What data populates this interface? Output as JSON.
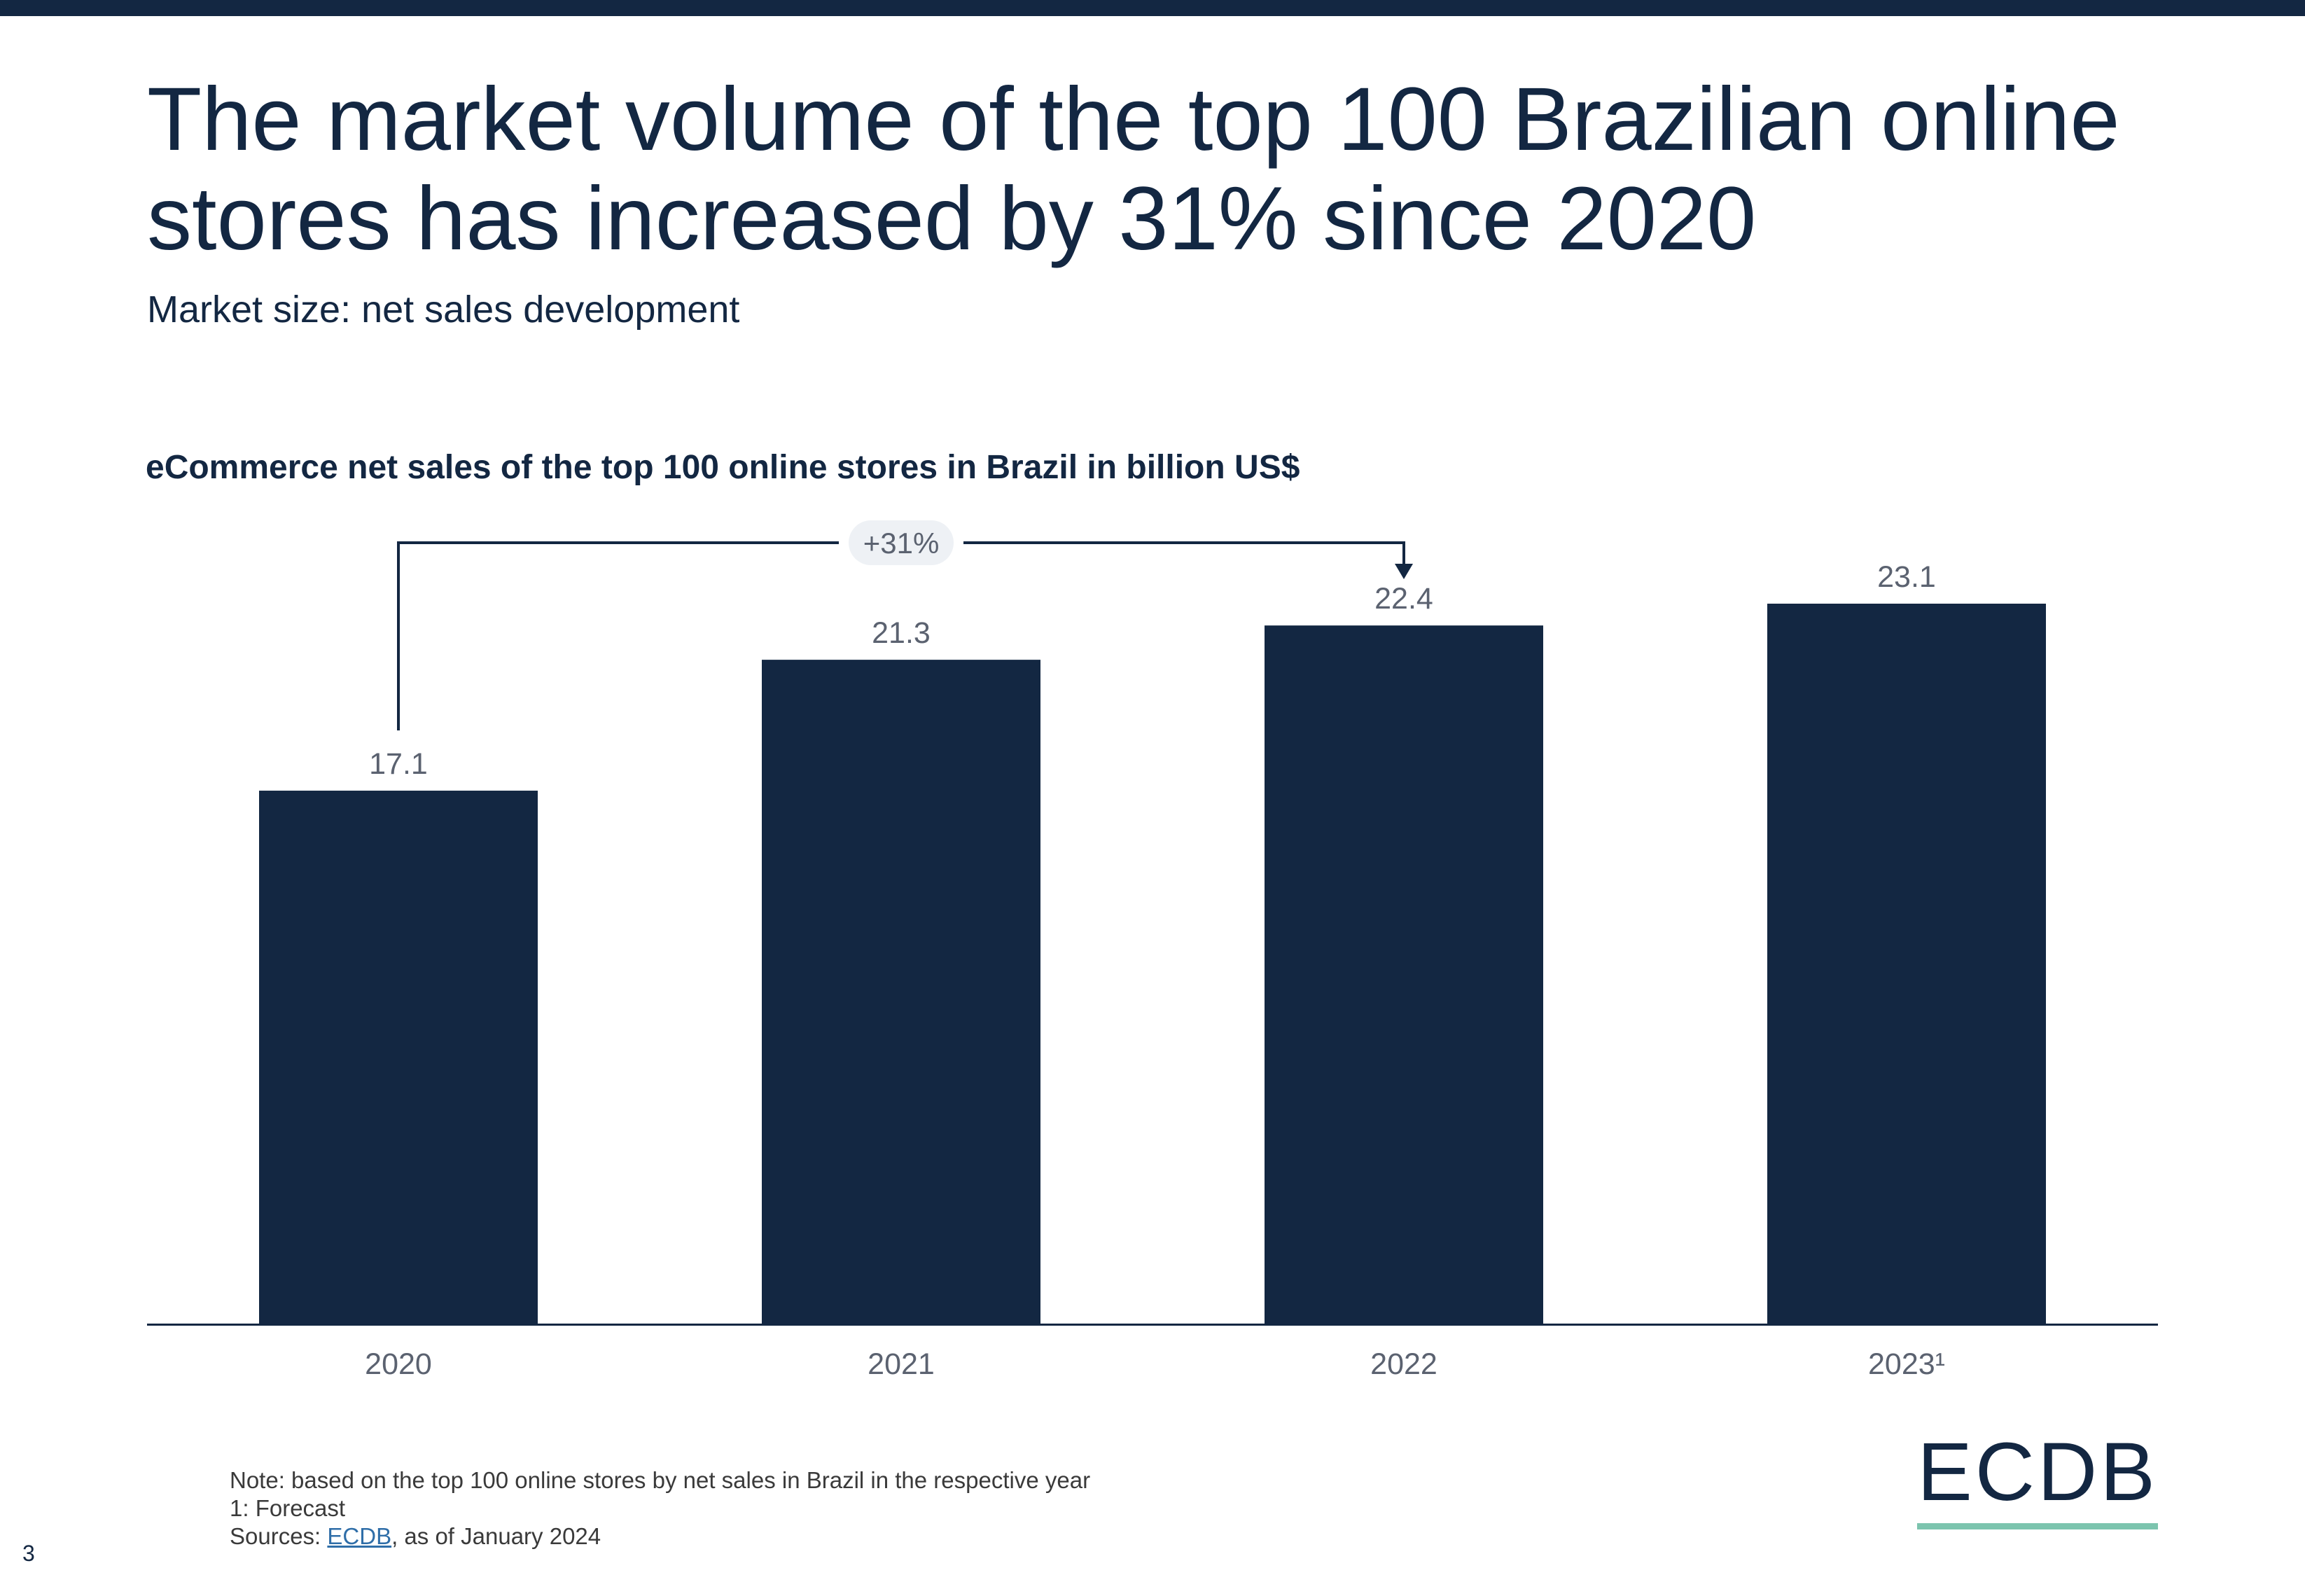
{
  "header": {
    "title": "The market volume of the top 100 Brazilian online stores has increased by 31% since 2020",
    "subtitle": "Market size: net sales development"
  },
  "chart_data": {
    "type": "bar",
    "title": "eCommerce net sales of the top 100 online stores in Brazil in billion US$",
    "categories": [
      "2020",
      "2021",
      "2022",
      "2023¹"
    ],
    "values": [
      17.1,
      21.3,
      22.4,
      23.1
    ],
    "value_labels": [
      "17.1",
      "21.3",
      "22.4",
      "23.1"
    ],
    "xlabel": "",
    "ylabel": "",
    "ylim": [
      0,
      23.1
    ],
    "grid": false,
    "bar_color": "#132742",
    "annotation": {
      "label": "+31%",
      "from": "2020",
      "to": "2022"
    }
  },
  "footnotes": {
    "note": "Note: based on the top 100 online stores by net sales in Brazil in the respective year",
    "forecast": "1: Forecast",
    "sources_prefix": "Sources: ",
    "sources_link": "ECDB",
    "sources_suffix": ", as of January 2024"
  },
  "page_number": "3",
  "logo": {
    "text": "ECDB",
    "accent_color": "#7cc4ae"
  },
  "colors": {
    "primary": "#132742",
    "label_gray": "#5b6270",
    "accent": "#7cc4ae"
  }
}
